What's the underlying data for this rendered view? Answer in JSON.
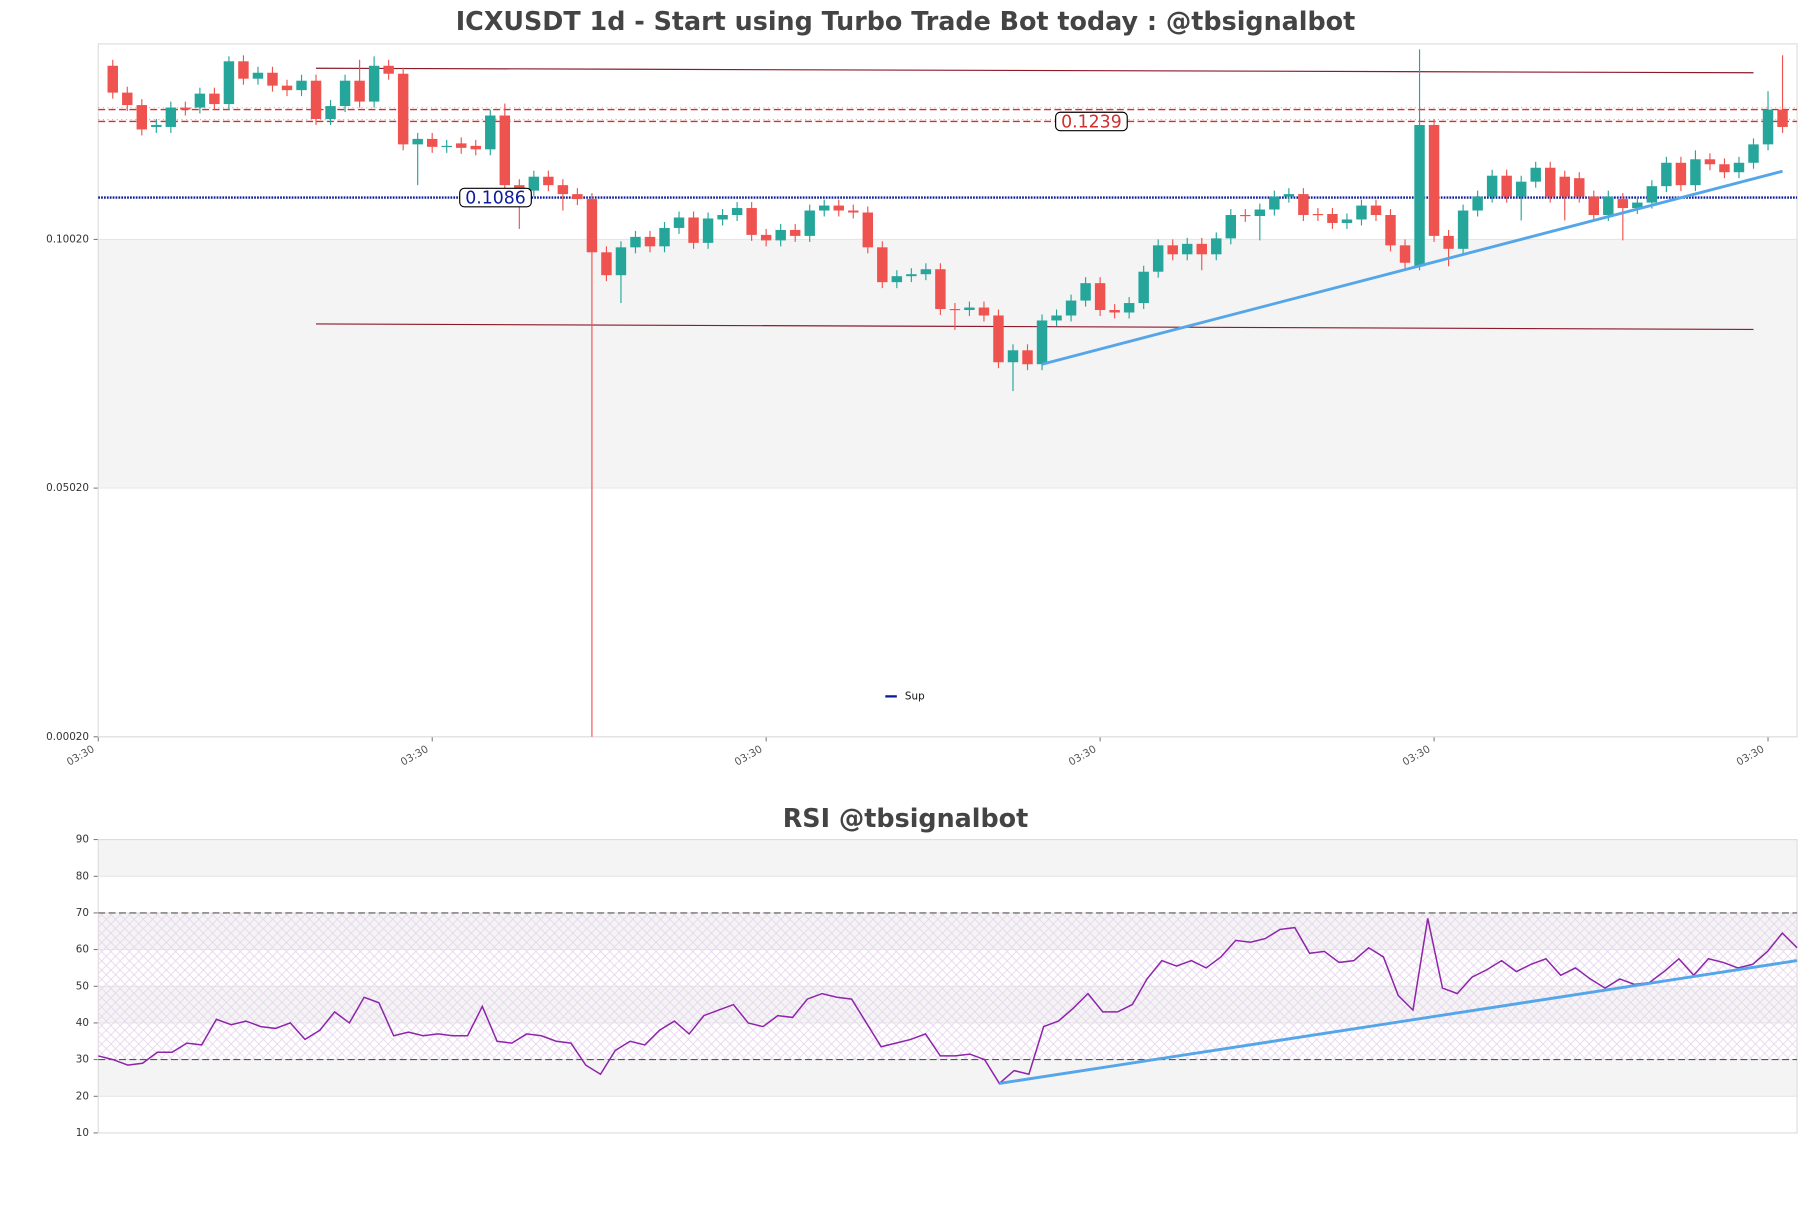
{
  "chart_data": [
    {
      "type": "candlestick",
      "title": "ICXUSDT 1d - Start using Turbo Trade Bot today : @tbsignalbot",
      "open": [
        0.1351,
        0.1297,
        0.1272,
        0.1228,
        0.1228,
        0.1267,
        0.1267,
        0.1295,
        0.1274,
        0.136,
        0.1325,
        0.1337,
        0.1311,
        0.1302,
        0.1321,
        0.1244,
        0.127,
        0.1321,
        0.1279,
        0.1351,
        0.1335,
        0.1193,
        0.1204,
        0.1188,
        0.1195,
        0.119,
        0.1183,
        0.1251,
        0.1111,
        0.11,
        0.1128,
        0.1111,
        0.1093,
        0.1083,
        0.0976,
        0.093,
        0.0986,
        0.1007,
        0.0988,
        0.1025,
        0.1046,
        0.0995,
        0.1042,
        0.1051,
        0.1065,
        0.1011,
        0.1,
        0.1021,
        0.1009,
        0.106,
        0.107,
        0.106,
        0.1056,
        0.0986,
        0.0916,
        0.0928,
        0.0932,
        0.0942,
        0.0862,
        0.086,
        0.0865,
        0.0849,
        0.0755,
        0.0779,
        0.0751,
        0.0839,
        0.0849,
        0.0879,
        0.0914,
        0.086,
        0.0855,
        0.0874,
        0.0937,
        0.099,
        0.0972,
        0.0993,
        0.0972,
        0.1004,
        0.1051,
        0.1049,
        0.1062,
        0.1088,
        0.1093,
        0.1053,
        0.1053,
        0.1035,
        0.1042,
        0.107,
        0.1051,
        0.099,
        0.0948,
        0.1232,
        0.1009,
        0.0983,
        0.106,
        0.1088,
        0.113,
        0.1088,
        0.1118,
        0.1146,
        0.1128,
        0.1125,
        0.1088,
        0.1051,
        0.1083,
        0.1065,
        0.1076,
        0.1109,
        0.1156,
        0.1111,
        0.1163,
        0.1153,
        0.1137,
        0.1156,
        0.1193,
        0.1263
      ],
      "high": [
        0.1363,
        0.1309,
        0.1284,
        0.1244,
        0.1279,
        0.1279,
        0.1307,
        0.1307,
        0.137,
        0.1372,
        0.1349,
        0.1349,
        0.1323,
        0.1333,
        0.1333,
        0.1282,
        0.1333,
        0.1363,
        0.137,
        0.1363,
        0.1347,
        0.1216,
        0.1216,
        0.1202,
        0.1207,
        0.1202,
        0.1263,
        0.1275,
        0.1123,
        0.114,
        0.114,
        0.1123,
        0.1105,
        0.1095,
        0.0988,
        0.0998,
        0.1019,
        0.1019,
        0.1037,
        0.1058,
        0.1058,
        0.1056,
        0.1063,
        0.1077,
        0.1077,
        0.1023,
        0.1033,
        0.1033,
        0.1072,
        0.1082,
        0.1082,
        0.1072,
        0.1068,
        0.0998,
        0.094,
        0.0944,
        0.0954,
        0.0954,
        0.0874,
        0.0877,
        0.0877,
        0.0861,
        0.0791,
        0.0791,
        0.0851,
        0.0861,
        0.0891,
        0.0926,
        0.0926,
        0.0872,
        0.0886,
        0.0949,
        0.1002,
        0.1002,
        0.1005,
        0.1005,
        0.1016,
        0.1063,
        0.1063,
        0.1074,
        0.11,
        0.1105,
        0.1105,
        0.1065,
        0.1065,
        0.1054,
        0.1082,
        0.1082,
        0.1063,
        0.1002,
        0.1384,
        0.1244,
        0.1021,
        0.1072,
        0.11,
        0.1142,
        0.1142,
        0.113,
        0.1158,
        0.1158,
        0.114,
        0.1137,
        0.11,
        0.11,
        0.1095,
        0.1088,
        0.1121,
        0.1168,
        0.1168,
        0.1181,
        0.1175,
        0.1165,
        0.1168,
        0.1205,
        0.13,
        0.1372
      ],
      "low": [
        0.1285,
        0.126,
        0.1211,
        0.1216,
        0.1216,
        0.1251,
        0.1255,
        0.1262,
        0.1262,
        0.1313,
        0.1313,
        0.1299,
        0.129,
        0.129,
        0.1232,
        0.1232,
        0.1258,
        0.1267,
        0.1267,
        0.1323,
        0.1181,
        0.1111,
        0.1176,
        0.1176,
        0.1174,
        0.1171,
        0.1171,
        0.1099,
        0.1023,
        0.1088,
        0.1099,
        0.106,
        0.1071,
        0.0002,
        0.0918,
        0.0874,
        0.0974,
        0.0976,
        0.0976,
        0.1013,
        0.0983,
        0.0983,
        0.103,
        0.1039,
        0.0999,
        0.0988,
        0.0988,
        0.0997,
        0.0997,
        0.1048,
        0.1048,
        0.1044,
        0.0974,
        0.0904,
        0.0904,
        0.0916,
        0.092,
        0.085,
        0.082,
        0.0848,
        0.0837,
        0.0743,
        0.0697,
        0.0739,
        0.0739,
        0.0827,
        0.0837,
        0.0867,
        0.0848,
        0.0843,
        0.0843,
        0.0862,
        0.0925,
        0.096,
        0.096,
        0.094,
        0.096,
        0.0992,
        0.1037,
        0.1,
        0.105,
        0.1076,
        0.1039,
        0.1039,
        0.1023,
        0.1023,
        0.103,
        0.1039,
        0.0978,
        0.0943,
        0.094,
        0.0997,
        0.0948,
        0.0971,
        0.1048,
        0.1076,
        0.1076,
        0.104,
        0.1106,
        0.1076,
        0.104,
        0.1076,
        0.1039,
        0.1039,
        0.1,
        0.1053,
        0.1064,
        0.1097,
        0.1099,
        0.1099,
        0.1141,
        0.1125,
        0.1125,
        0.1144,
        0.1181,
        0.1216
      ],
      "close": [
        0.1297,
        0.1272,
        0.1223,
        0.1232,
        0.1267,
        0.1263,
        0.1295,
        0.1274,
        0.136,
        0.1325,
        0.1337,
        0.1311,
        0.1302,
        0.1321,
        0.1244,
        0.127,
        0.1321,
        0.1279,
        0.1351,
        0.1335,
        0.1193,
        0.1204,
        0.1188,
        0.119,
        0.1186,
        0.1183,
        0.1251,
        0.1111,
        0.11,
        0.1128,
        0.1111,
        0.1093,
        0.1083,
        0.0976,
        0.093,
        0.0986,
        0.1007,
        0.0988,
        0.1025,
        0.1046,
        0.0995,
        0.1044,
        0.1051,
        0.1065,
        0.1011,
        0.1,
        0.1021,
        0.1009,
        0.106,
        0.107,
        0.106,
        0.1056,
        0.0986,
        0.0916,
        0.0928,
        0.0932,
        0.0942,
        0.0862,
        0.086,
        0.0865,
        0.0849,
        0.0755,
        0.0779,
        0.0751,
        0.0839,
        0.0849,
        0.0879,
        0.0914,
        0.086,
        0.0855,
        0.0874,
        0.0937,
        0.099,
        0.0972,
        0.0993,
        0.0972,
        0.1004,
        0.1051,
        0.1049,
        0.1062,
        0.1088,
        0.1093,
        0.1051,
        0.1051,
        0.1035,
        0.1042,
        0.107,
        0.1051,
        0.099,
        0.0955,
        0.1232,
        0.1009,
        0.0983,
        0.106,
        0.1088,
        0.113,
        0.1088,
        0.1118,
        0.1146,
        0.1088,
        0.1088,
        0.1088,
        0.1051,
        0.1088,
        0.1065,
        0.1076,
        0.1109,
        0.1156,
        0.1111,
        0.1163,
        0.1153,
        0.1137,
        0.1156,
        0.1193,
        0.1263,
        0.1228
      ],
      "up_color": "#26a69a",
      "down_color": "#ef5350",
      "xlim": [
        -1,
        116
      ],
      "xticks": [
        {
          "value": -1,
          "label": "03:30"
        },
        {
          "value": 22,
          "label": "03:30"
        },
        {
          "value": 45,
          "label": "03:30"
        },
        {
          "value": 68,
          "label": "03:30"
        },
        {
          "value": 91,
          "label": "03:30"
        },
        {
          "value": 114,
          "label": "03:30"
        }
      ],
      "ylim": [
        0.0002,
        0.1395
      ],
      "yticks": [
        {
          "value": 0.0002,
          "label": "0.00020"
        },
        {
          "value": 0.0502,
          "label": "0.05020"
        },
        {
          "value": 0.1002,
          "label": "0.10020"
        }
      ],
      "band_shading": true,
      "resistance": [
        {
          "value": 0.1263,
          "color": "#d32f2f"
        },
        {
          "value": 0.1239,
          "color": "#d32f2f",
          "boxed": true
        }
      ],
      "support": {
        "name": "Sup",
        "value": 0.1086,
        "color": "#0d1b9e",
        "boxed": true
      },
      "channel": [
        {
          "x": [
            14,
            113
          ],
          "y": [
            0.1346,
            0.1337
          ],
          "color": "#8b1a2b"
        },
        {
          "x": [
            14,
            113
          ],
          "y": [
            0.0832,
            0.0821
          ],
          "color": "#8b1a2b"
        }
      ],
      "trendline": {
        "x": [
          64,
          115
        ],
        "y": [
          0.0751,
          0.1139
        ],
        "color": "#55a6e8"
      },
      "legend": "lower center"
    },
    {
      "type": "line",
      "title": "RSI @tbsignalbot",
      "values": [
        31,
        30,
        28.5,
        29,
        32,
        32,
        34.5,
        34,
        41,
        39.5,
        40.5,
        39,
        38.5,
        40,
        35.5,
        38,
        43,
        40,
        47,
        45.5,
        36.5,
        37.5,
        36.5,
        37,
        36.5,
        36.5,
        44.5,
        35,
        34.5,
        37,
        36.5,
        35,
        34.5,
        28.5,
        26,
        32.5,
        35,
        34,
        38,
        40.5,
        37,
        42,
        43.5,
        45,
        40,
        39,
        42,
        41.5,
        46.5,
        48,
        47,
        46.5,
        40,
        33.5,
        34.5,
        35.5,
        37,
        31,
        31,
        31.5,
        30,
        23.5,
        27,
        26,
        39,
        40.5,
        44,
        48,
        43,
        43,
        45,
        52,
        57,
        55.5,
        57,
        55,
        58,
        62.5,
        62,
        63,
        65.5,
        66,
        59,
        59.5,
        56.5,
        57,
        60.5,
        58,
        47.5,
        43.5,
        68.5,
        49.5,
        48,
        52.5,
        54.5,
        57,
        54,
        56,
        57.5,
        53,
        55,
        52,
        49.5,
        52,
        50.5,
        51,
        54,
        57.5,
        53,
        57.5,
        56.5,
        55,
        56,
        59.5,
        64.5,
        60.5
      ],
      "color": "#8e24aa",
      "xlim": [
        0,
        115
      ],
      "ylim": [
        10,
        90
      ],
      "yticks": [
        10,
        20,
        30,
        40,
        50,
        60,
        70,
        80,
        90
      ],
      "band_shading": true,
      "levels": [
        70,
        30
      ],
      "hatch": [
        30,
        70
      ],
      "trendline": {
        "x": [
          61,
          115
        ],
        "y": [
          23.5,
          57
        ],
        "color": "#55a6e8"
      }
    }
  ]
}
